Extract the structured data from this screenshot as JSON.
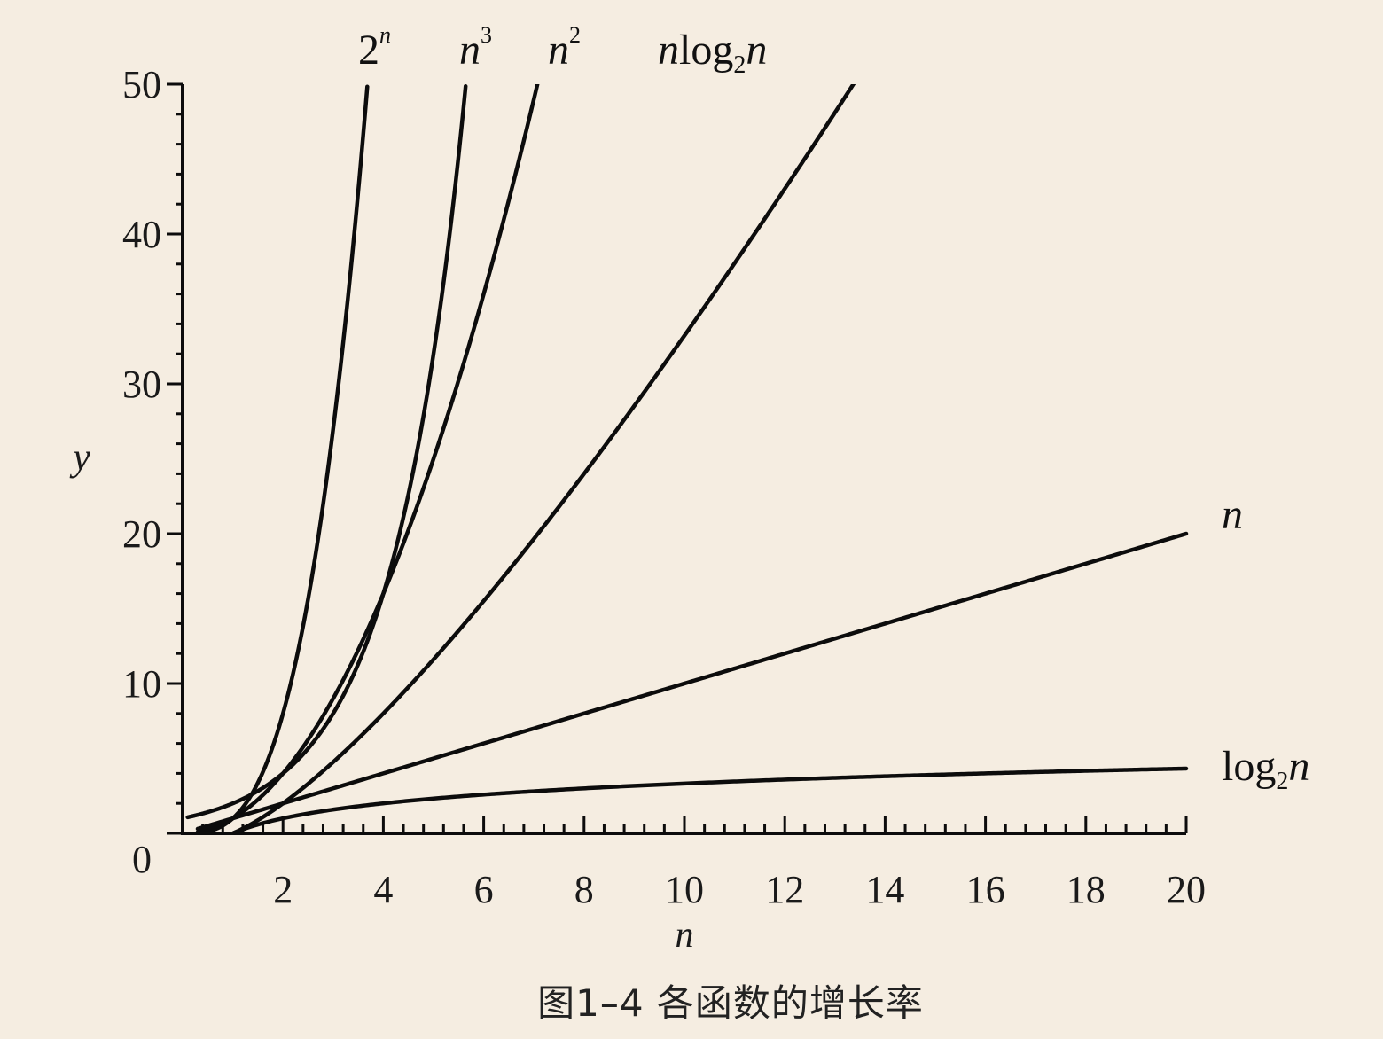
{
  "caption": "图1–4 各函数的增长率",
  "chart_data": {
    "type": "line",
    "xlabel": "n",
    "ylabel": "y",
    "xlim": [
      0,
      20
    ],
    "ylim": [
      0,
      50
    ],
    "x_ticks": [
      2,
      4,
      6,
      8,
      10,
      12,
      14,
      16,
      18,
      20
    ],
    "y_ticks": [
      0,
      10,
      20,
      30,
      40,
      50
    ],
    "grid": false,
    "series": [
      {
        "name": "2^n",
        "label_parts": [
          "2",
          "n"
        ],
        "function": "pow2",
        "x_range": [
          0.1,
          5.64
        ]
      },
      {
        "name": "n^3",
        "label_parts": [
          "n",
          "3"
        ],
        "function": "cube",
        "x_range": [
          0.3,
          3.68
        ]
      },
      {
        "name": "n^2",
        "label_parts": [
          "n",
          "2"
        ],
        "function": "square",
        "x_range": [
          0.3,
          7.07
        ]
      },
      {
        "name": "nlog2n",
        "label_parts": [
          "n",
          "log",
          "2",
          "n"
        ],
        "function": "nlogn",
        "x_range": [
          1,
          13.4
        ]
      },
      {
        "name": "n",
        "label_parts": [
          "n"
        ],
        "function": "linear",
        "x_range": [
          0.3,
          20
        ]
      },
      {
        "name": "log2n",
        "label_parts": [
          "log",
          "2",
          "n"
        ],
        "function": "log2",
        "x_range": [
          0.3,
          20
        ]
      }
    ]
  }
}
